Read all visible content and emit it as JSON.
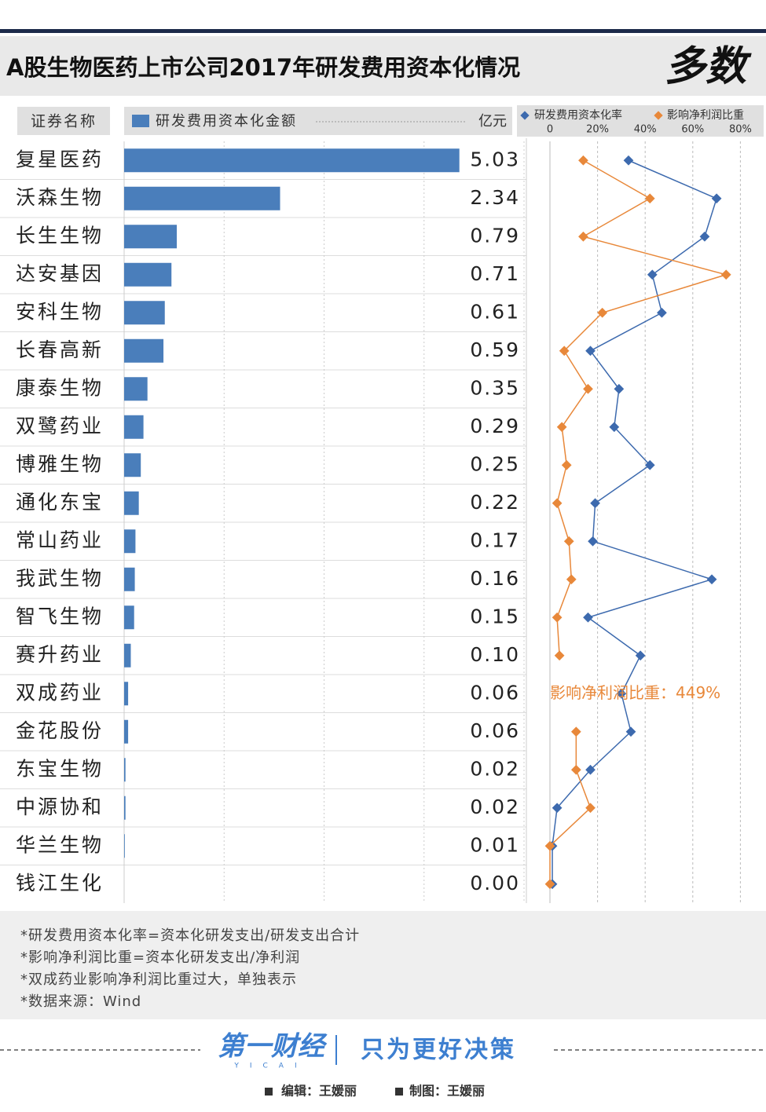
{
  "header": {
    "title": "A股生物医药上市公司2017年研发费用资本化情况",
    "logo": "多数"
  },
  "chart_data": [
    {
      "type": "bar",
      "category_header": "证券名称",
      "unit": "亿元",
      "categories": [
        "复星医药",
        "沃森生物",
        "长生生物",
        "达安基因",
        "安科生物",
        "长春高新",
        "康泰生物",
        "双鹭药业",
        "博雅生物",
        "通化东宝",
        "常山药业",
        "我武生物",
        "智飞生物",
        "赛升药业",
        "双成药业",
        "金花股份",
        "东宝生物",
        "中源协和",
        "华兰生物",
        "钱江生化"
      ],
      "series": [
        {
          "name": "研发费用资本化金额",
          "color": "#4a7ebb",
          "values": [
            5.03,
            2.34,
            0.79,
            0.71,
            0.61,
            0.59,
            0.35,
            0.29,
            0.25,
            0.22,
            0.17,
            0.16,
            0.15,
            0.1,
            0.06,
            0.06,
            0.02,
            0.02,
            0.01,
            0.0
          ],
          "value_labels": [
            "5.03",
            "2.34",
            "0.79",
            "0.71",
            "0.61",
            "0.59",
            "0.35",
            "0.29",
            "0.25",
            "0.22",
            "0.17",
            "0.16",
            "0.15",
            "0.10",
            "0.06",
            "0.06",
            "0.02",
            "0.02",
            "0.01",
            "0.00"
          ]
        }
      ],
      "xlim": [
        0,
        6
      ],
      "xticks": [
        0,
        1.5,
        3,
        4.5,
        6
      ],
      "grid": true
    },
    {
      "type": "line",
      "orientation": "horizontal",
      "series": [
        {
          "name": "研发费用资本化率",
          "color": "#3d6aae",
          "values": [
            33,
            70,
            65,
            43,
            47,
            17,
            29,
            27,
            42,
            19,
            18,
            68,
            16,
            38,
            30,
            34,
            17,
            3,
            1,
            1
          ]
        },
        {
          "name": "影响净利润比重",
          "color": "#e8883a",
          "values": [
            14,
            42,
            14,
            74,
            22,
            6,
            16,
            5,
            7,
            3,
            8,
            9,
            3,
            4,
            null,
            11,
            11,
            17,
            0,
            0
          ]
        }
      ],
      "xlim": [
        0,
        89
      ],
      "xticks": [
        0,
        {
          "value": 20,
          "label": "20%"
        },
        {
          "value": 40,
          "label": "40%"
        },
        {
          "value": 60,
          "label": "60%"
        },
        {
          "value": 80,
          "label": "80%"
        }
      ],
      "grid": true,
      "annotation": "影响净利润比重：449%"
    }
  ],
  "notes": [
    "*研发费用资本化率=资本化研发支出/研发支出合计",
    "*影响净利润比重=资本化研发支出/净利润",
    "*双成药业影响净利润比重过大，单独表示",
    "*数据来源：Wind"
  ],
  "footer": {
    "brand": "第一财经",
    "brand_sub": "YICAI",
    "slogan": "只为更好决策",
    "editor": "编辑：王媛丽",
    "designer": "制图：王媛丽"
  }
}
